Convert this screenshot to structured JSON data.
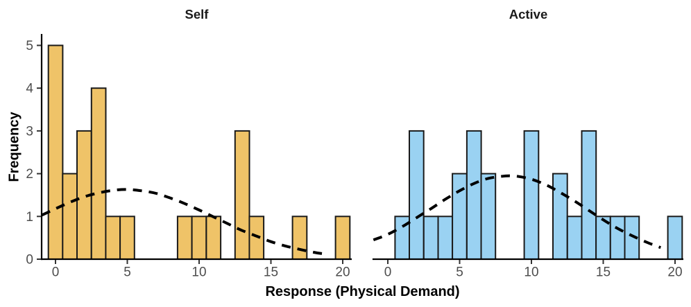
{
  "chart_data": {
    "type": "bar",
    "subtype": "faceted-histogram-with-dashed-density-curve",
    "title": "",
    "xlabel": "Response (Physical Demand)",
    "ylabel": "Frequency",
    "x_ticks": [
      0,
      5,
      10,
      15,
      20
    ],
    "y_ticks": [
      0,
      1,
      2,
      3,
      4,
      5
    ],
    "xlim": [
      -1,
      20.6
    ],
    "ylim": [
      0,
      5.27
    ],
    "binwidth": 1,
    "grid": false,
    "legend": "none",
    "curve_style": {
      "dash": "dashed",
      "color": "#000000",
      "width": 4
    },
    "colors": {
      "bar_stroke": "#1a1a1a",
      "axis": "#000000",
      "tick_mark": "#333333",
      "tick_label": "#4d4d4d",
      "background": "#ffffff"
    },
    "facets": [
      {
        "label": "Self",
        "bar_color": "#EFC368",
        "bars": [
          {
            "x": 0,
            "freq": 5
          },
          {
            "x": 1,
            "freq": 2
          },
          {
            "x": 2,
            "freq": 3
          },
          {
            "x": 3,
            "freq": 4
          },
          {
            "x": 4,
            "freq": 1
          },
          {
            "x": 5,
            "freq": 1
          },
          {
            "x": 9,
            "freq": 1
          },
          {
            "x": 10,
            "freq": 1
          },
          {
            "x": 11,
            "freq": 1
          },
          {
            "x": 13,
            "freq": 3
          },
          {
            "x": 14,
            "freq": 1
          },
          {
            "x": 17,
            "freq": 1
          },
          {
            "x": 20,
            "freq": 1
          }
        ],
        "curve_points": [
          [
            -0.95,
            1.03
          ],
          [
            0,
            1.18
          ],
          [
            1,
            1.33
          ],
          [
            2,
            1.46
          ],
          [
            3,
            1.55
          ],
          [
            4,
            1.61
          ],
          [
            5,
            1.63
          ],
          [
            6,
            1.6
          ],
          [
            7,
            1.54
          ],
          [
            8,
            1.43
          ],
          [
            9,
            1.3
          ],
          [
            10,
            1.15
          ],
          [
            11,
            0.99
          ],
          [
            12,
            0.83
          ],
          [
            13,
            0.67
          ],
          [
            14,
            0.54
          ],
          [
            15,
            0.41
          ],
          [
            16,
            0.31
          ],
          [
            17,
            0.23
          ],
          [
            18,
            0.16
          ],
          [
            18.6,
            0.13
          ]
        ]
      },
      {
        "label": "Active",
        "bar_color": "#9AD2F2",
        "bars": [
          {
            "x": 1,
            "freq": 1
          },
          {
            "x": 2,
            "freq": 3
          },
          {
            "x": 3,
            "freq": 1
          },
          {
            "x": 4,
            "freq": 1
          },
          {
            "x": 5,
            "freq": 2
          },
          {
            "x": 6,
            "freq": 3
          },
          {
            "x": 7,
            "freq": 2
          },
          {
            "x": 10,
            "freq": 3
          },
          {
            "x": 12,
            "freq": 2
          },
          {
            "x": 13,
            "freq": 1
          },
          {
            "x": 14,
            "freq": 3
          },
          {
            "x": 15,
            "freq": 1
          },
          {
            "x": 16,
            "freq": 1
          },
          {
            "x": 17,
            "freq": 1
          },
          {
            "x": 20,
            "freq": 1
          }
        ],
        "curve_points": [
          [
            -1.0,
            0.45
          ],
          [
            0,
            0.58
          ],
          [
            1,
            0.76
          ],
          [
            2,
            0.97
          ],
          [
            3,
            1.18
          ],
          [
            4,
            1.4
          ],
          [
            5,
            1.6
          ],
          [
            6,
            1.77
          ],
          [
            7,
            1.89
          ],
          [
            8,
            1.94
          ],
          [
            8.4,
            1.95
          ],
          [
            9,
            1.94
          ],
          [
            10,
            1.87
          ],
          [
            11,
            1.74
          ],
          [
            12,
            1.56
          ],
          [
            13,
            1.36
          ],
          [
            14,
            1.14
          ],
          [
            15,
            0.92
          ],
          [
            16,
            0.72
          ],
          [
            17,
            0.55
          ],
          [
            18,
            0.4
          ],
          [
            19,
            0.27
          ]
        ]
      }
    ]
  }
}
